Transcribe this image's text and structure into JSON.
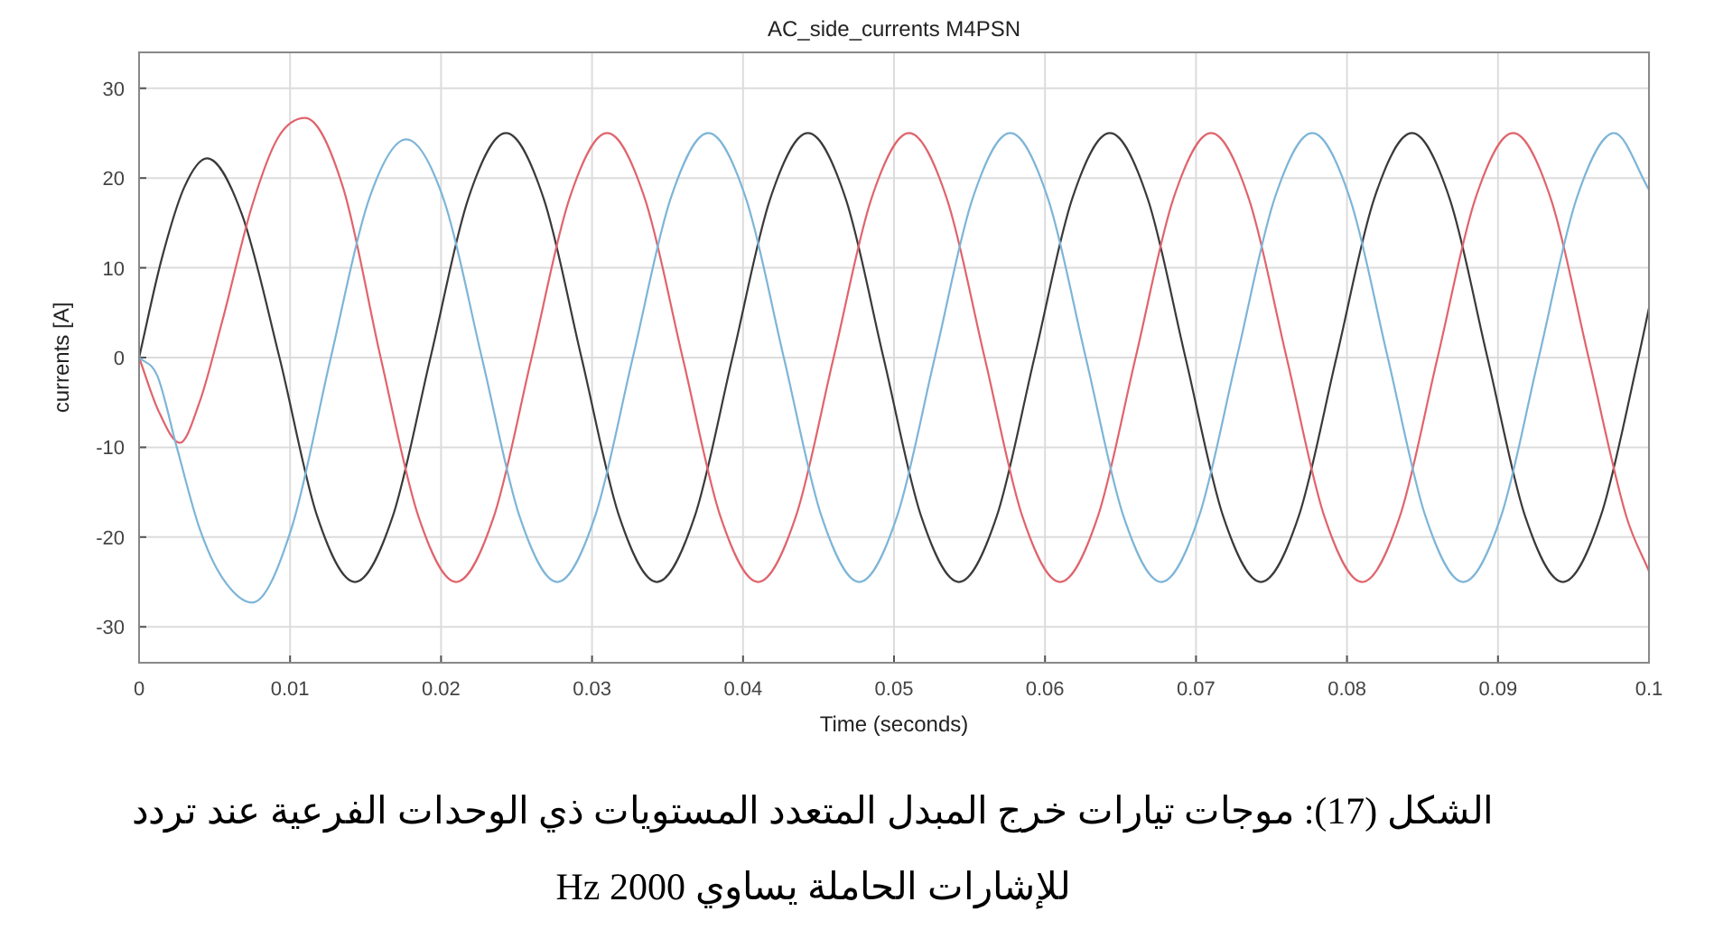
{
  "chart_data": {
    "type": "line",
    "title": "AC_side_currents M4PSN",
    "xlabel": "Time (seconds)",
    "ylabel": "currents [A]",
    "annotations": [
      "الشكل (17): موجات تيارات خرج المبدل المتعدد المستويات ذي الوحدات الفرعية عند تردد للإشارات الحاملة يساوي 2000 Hz"
    ],
    "xlim": [
      0,
      0.1
    ],
    "xticks": [
      0,
      0.01,
      0.02,
      0.03,
      0.04,
      0.05,
      0.06,
      0.07,
      0.08,
      0.09,
      0.1
    ],
    "ylim": [
      -34,
      34
    ],
    "yticks": [
      -30,
      -20,
      -10,
      0,
      10,
      20,
      30
    ],
    "grid": true,
    "marker": "none",
    "line_style": "solid",
    "series": [
      {
        "color": "#3a3a3a",
        "x": [
          0,
          0.0015,
          0.003,
          0.0045,
          0.0068,
          0.0093,
          0.0118,
          0.0143,
          0.0168,
          0.0193,
          0.0218,
          0.0243,
          0.0268,
          0.0293,
          0.0318,
          0.0343,
          0.0368,
          0.0393,
          0.0418,
          0.0443,
          0.0468,
          0.0493,
          0.0518,
          0.0543,
          0.0568,
          0.0593,
          0.0618,
          0.0643,
          0.0668,
          0.0693,
          0.0718,
          0.0743,
          0.0768,
          0.0793,
          0.0818,
          0.0843,
          0.0868,
          0.0893,
          0.0918,
          0.0943,
          0.0968,
          0.0993,
          0.1
        ],
        "values": [
          0,
          11,
          19,
          22.2,
          16,
          0,
          -17.7,
          -25,
          -17.7,
          0,
          17.7,
          25,
          17.7,
          0,
          -17.7,
          -25,
          -17.7,
          0,
          17.7,
          25,
          17.7,
          0,
          -17.7,
          -25,
          -17.7,
          0,
          17.7,
          25,
          17.7,
          0,
          -17.7,
          -25,
          -17.7,
          0,
          17.7,
          25,
          17.7,
          0,
          -17.7,
          -25,
          -17.7,
          0,
          5.5
        ]
      },
      {
        "color": "#e0646c",
        "x": [
          0,
          0.0013,
          0.0027,
          0.004,
          0.0055,
          0.0075,
          0.0092,
          0.011,
          0.0135,
          0.016,
          0.0185,
          0.021,
          0.0235,
          0.026,
          0.0285,
          0.031,
          0.0335,
          0.036,
          0.0385,
          0.041,
          0.0435,
          0.046,
          0.0485,
          0.051,
          0.0535,
          0.056,
          0.0585,
          0.061,
          0.0635,
          0.066,
          0.0685,
          0.071,
          0.0735,
          0.076,
          0.0785,
          0.081,
          0.0835,
          0.086,
          0.0885,
          0.091,
          0.0935,
          0.096,
          0.0985,
          0.1
        ],
        "values": [
          0,
          -6,
          -9.5,
          -5,
          4,
          17,
          24.5,
          26.7,
          19,
          0,
          -17.7,
          -25,
          -17.7,
          0,
          17.7,
          25,
          17.7,
          0,
          -17.7,
          -25,
          -17.7,
          0,
          17.7,
          25,
          17.7,
          0,
          -17.7,
          -25,
          -17.7,
          0,
          17.7,
          25,
          17.7,
          0,
          -17.7,
          -25,
          -17.7,
          0,
          17.7,
          25,
          17.7,
          0,
          -17.7,
          -23.8
        ]
      },
      {
        "color": "#7db5d8",
        "x": [
          0,
          0.0012,
          0.0025,
          0.004,
          0.0055,
          0.0075,
          0.0101,
          0.0127,
          0.0152,
          0.0177,
          0.0202,
          0.0227,
          0.0252,
          0.0277,
          0.0302,
          0.0327,
          0.0352,
          0.0377,
          0.0402,
          0.0427,
          0.0452,
          0.0477,
          0.0502,
          0.0527,
          0.0552,
          0.0577,
          0.0602,
          0.0627,
          0.0652,
          0.0677,
          0.0702,
          0.0727,
          0.0752,
          0.0777,
          0.0802,
          0.0827,
          0.0852,
          0.0877,
          0.0902,
          0.0927,
          0.0952,
          0.0977,
          0.1
        ],
        "values": [
          0,
          -2,
          -10,
          -19,
          -24.5,
          -27.3,
          -19,
          0,
          17.5,
          24.3,
          17.5,
          0,
          -17.7,
          -25,
          -17.7,
          0,
          17.7,
          25,
          17.7,
          0,
          -17.7,
          -25,
          -17.7,
          0,
          17.7,
          25,
          17.7,
          0,
          -17.7,
          -25,
          -17.7,
          0,
          17.7,
          25,
          17.7,
          0,
          -17.7,
          -25,
          -17.7,
          0,
          17.7,
          25,
          18.7
        ]
      }
    ]
  }
}
